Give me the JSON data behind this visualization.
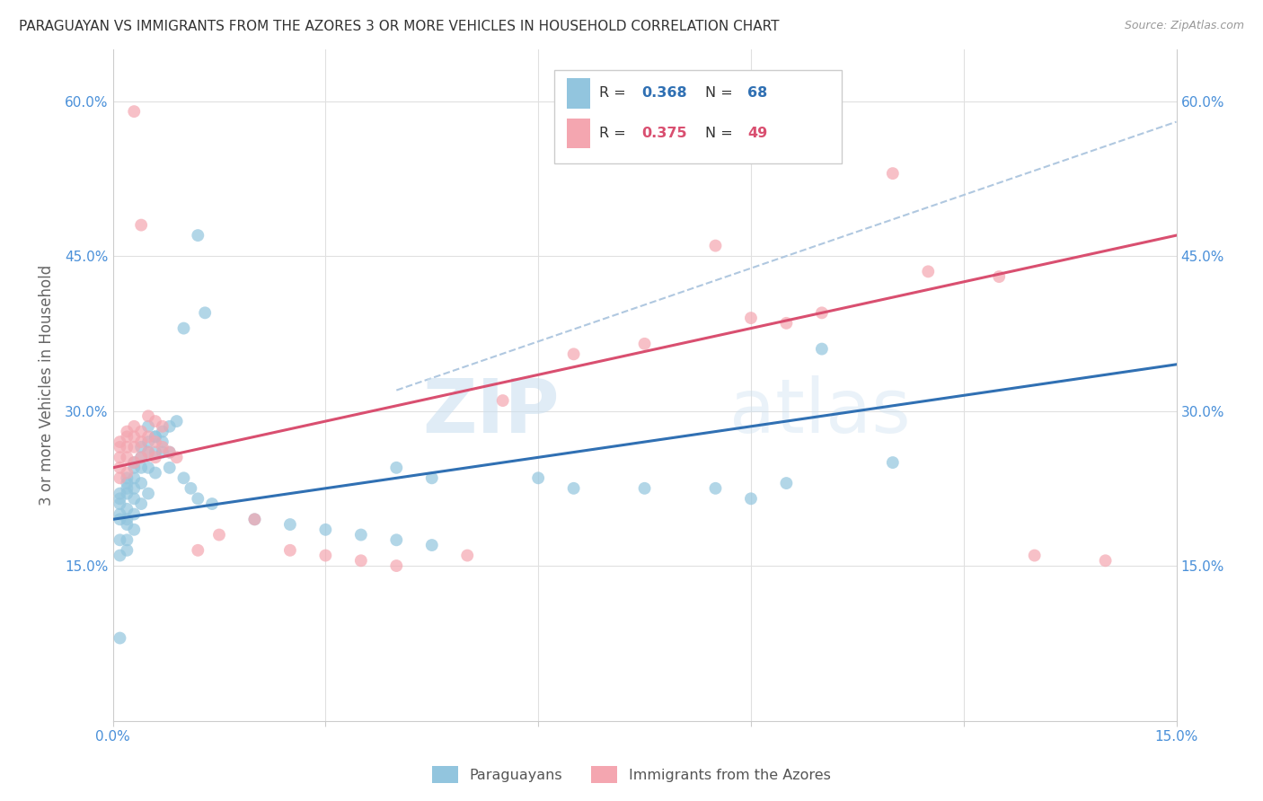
{
  "title": "PARAGUAYAN VS IMMIGRANTS FROM THE AZORES 3 OR MORE VEHICLES IN HOUSEHOLD CORRELATION CHART",
  "source": "Source: ZipAtlas.com",
  "ylabel": "3 or more Vehicles in Household",
  "xlim": [
    0.0,
    0.15
  ],
  "ylim": [
    0.0,
    0.65
  ],
  "blue_color": "#92c5de",
  "pink_color": "#f4a6b0",
  "blue_line_color": "#3070b3",
  "pink_line_color": "#d94f70",
  "dashed_line_color": "#b0c8e0",
  "grid_color": "#e0e0e0",
  "title_color": "#333333",
  "source_color": "#999999",
  "axis_label_color": "#666666",
  "tick_color": "#4a90d9",
  "legend_text_color": "#333333",
  "legend_blue_val_color": "#3070b3",
  "legend_pink_val_color": "#d94f70",
  "blue_scatter_x": [
    0.001,
    0.001,
    0.001,
    0.001,
    0.001,
    0.001,
    0.001,
    0.001,
    0.002,
    0.002,
    0.002,
    0.002,
    0.002,
    0.002,
    0.002,
    0.002,
    0.002,
    0.003,
    0.003,
    0.003,
    0.003,
    0.003,
    0.003,
    0.003,
    0.004,
    0.004,
    0.004,
    0.004,
    0.004,
    0.005,
    0.005,
    0.005,
    0.005,
    0.006,
    0.006,
    0.006,
    0.007,
    0.007,
    0.008,
    0.008,
    0.009,
    0.01,
    0.012,
    0.013,
    0.04,
    0.045,
    0.06,
    0.065,
    0.075,
    0.085,
    0.09,
    0.095,
    0.1,
    0.11,
    0.005,
    0.006,
    0.007,
    0.008,
    0.01,
    0.011,
    0.012,
    0.014,
    0.02,
    0.025,
    0.03,
    0.035,
    0.04,
    0.045
  ],
  "blue_scatter_y": [
    0.195,
    0.2,
    0.21,
    0.215,
    0.22,
    0.175,
    0.16,
    0.08,
    0.22,
    0.225,
    0.23,
    0.235,
    0.205,
    0.195,
    0.19,
    0.175,
    0.165,
    0.25,
    0.245,
    0.235,
    0.225,
    0.215,
    0.2,
    0.185,
    0.265,
    0.255,
    0.245,
    0.23,
    0.21,
    0.27,
    0.26,
    0.245,
    0.22,
    0.275,
    0.26,
    0.24,
    0.28,
    0.26,
    0.285,
    0.245,
    0.29,
    0.38,
    0.47,
    0.395,
    0.245,
    0.235,
    0.235,
    0.225,
    0.225,
    0.225,
    0.215,
    0.23,
    0.36,
    0.25,
    0.285,
    0.275,
    0.27,
    0.26,
    0.235,
    0.225,
    0.215,
    0.21,
    0.195,
    0.19,
    0.185,
    0.18,
    0.175,
    0.17
  ],
  "pink_scatter_x": [
    0.001,
    0.001,
    0.001,
    0.001,
    0.001,
    0.002,
    0.002,
    0.002,
    0.002,
    0.002,
    0.003,
    0.003,
    0.003,
    0.003,
    0.004,
    0.004,
    0.004,
    0.005,
    0.005,
    0.006,
    0.006,
    0.007,
    0.008,
    0.009,
    0.012,
    0.015,
    0.02,
    0.025,
    0.03,
    0.035,
    0.04,
    0.05,
    0.055,
    0.065,
    0.075,
    0.085,
    0.09,
    0.095,
    0.1,
    0.11,
    0.115,
    0.125,
    0.13,
    0.14,
    0.003,
    0.004,
    0.005,
    0.006,
    0.007
  ],
  "pink_scatter_y": [
    0.27,
    0.265,
    0.255,
    0.245,
    0.235,
    0.28,
    0.275,
    0.265,
    0.255,
    0.24,
    0.285,
    0.275,
    0.265,
    0.25,
    0.28,
    0.27,
    0.255,
    0.275,
    0.26,
    0.27,
    0.255,
    0.265,
    0.26,
    0.255,
    0.165,
    0.18,
    0.195,
    0.165,
    0.16,
    0.155,
    0.15,
    0.16,
    0.31,
    0.355,
    0.365,
    0.46,
    0.39,
    0.385,
    0.395,
    0.53,
    0.435,
    0.43,
    0.16,
    0.155,
    0.59,
    0.48,
    0.295,
    0.29,
    0.285
  ],
  "blue_line_x0": 0.0,
  "blue_line_x1": 0.15,
  "blue_line_y0": 0.195,
  "blue_line_y1": 0.345,
  "pink_line_x0": 0.0,
  "pink_line_x1": 0.15,
  "pink_line_y0": 0.245,
  "pink_line_y1": 0.47,
  "dash_line_x0": 0.04,
  "dash_line_x1": 0.15,
  "dash_line_y0": 0.32,
  "dash_line_y1": 0.58
}
